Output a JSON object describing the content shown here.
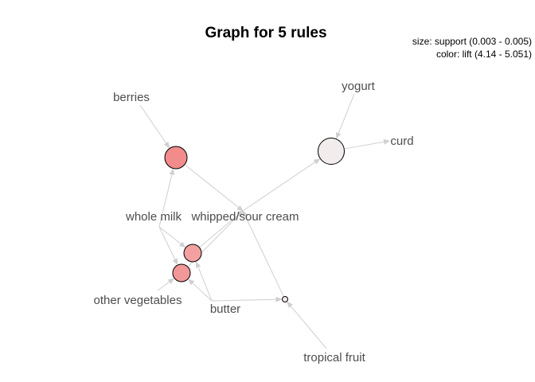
{
  "title": "Graph for 5 rules",
  "legend": {
    "size_line": "size: support (0.003 - 0.005)",
    "color_line": "color: lift (4.14 - 5.051)"
  },
  "colors": {
    "edge": "#cfcfcf",
    "label": "#4d4d4d",
    "node_stroke": "#000000"
  },
  "items": [
    {
      "id": "berries",
      "label": "berries"
    },
    {
      "id": "whole_milk",
      "label": "whole milk"
    },
    {
      "id": "whipped_sour_cream",
      "label": "whipped/sour cream"
    },
    {
      "id": "yogurt",
      "label": "yogurt"
    },
    {
      "id": "curd",
      "label": "curd"
    },
    {
      "id": "other_vegetables",
      "label": "other vegetables"
    },
    {
      "id": "butter",
      "label": "butter"
    },
    {
      "id": "tropical_fruit",
      "label": "tropical fruit"
    }
  ],
  "rules": [
    {
      "id": "rule1",
      "lhs": [
        "berries",
        "whole_milk"
      ],
      "rhs": [
        "whipped_sour_cream"
      ],
      "fill": "#f28b8b"
    },
    {
      "id": "rule2",
      "lhs": [
        "whipped_sour_cream",
        "yogurt"
      ],
      "rhs": [
        "curd"
      ],
      "fill": "#f3ecec"
    },
    {
      "id": "rule3",
      "lhs": [
        "whole_milk",
        "butter"
      ],
      "rhs": [
        "whipped_sour_cream"
      ],
      "fill": "#f2a0a0"
    },
    {
      "id": "rule4",
      "lhs": [
        "whole_milk",
        "other_vegetables",
        "butter"
      ],
      "rhs": [
        "whipped_sour_cream"
      ],
      "fill": "#f29898"
    },
    {
      "id": "rule5",
      "lhs": [
        "tropical_fruit",
        "butter"
      ],
      "rhs": [
        "whipped_sour_cream"
      ],
      "fill": "#f7eaea"
    }
  ]
}
